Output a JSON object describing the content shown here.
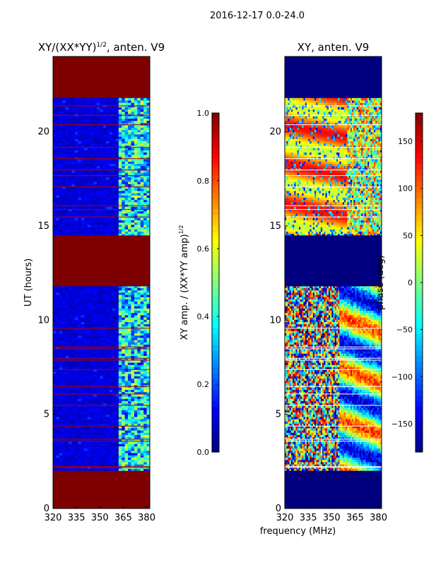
{
  "header": {
    "title": "2016-12-17 0.0-24.0"
  },
  "chart_data": [
    {
      "type": "heatmap",
      "title": "XY/(XX*YY)^1/2, anten. V9",
      "title_parts": {
        "base": "XY/(XX*YY)",
        "sup": "1/2",
        "tail": ", anten. V9"
      },
      "xlabel": "",
      "ylabel": "UT (hours)",
      "xlim": [
        320,
        382
      ],
      "ylim": [
        0,
        24
      ],
      "xticks": [
        320,
        335,
        350,
        365,
        380
      ],
      "yticks": [
        0,
        5,
        10,
        15,
        20
      ],
      "colormap": "jet",
      "colorbar": {
        "label": "XY amp. / (XX*YY amp)^1/2",
        "label_parts": {
          "base": "XY amp. / (XX*YY amp)",
          "sup": "1/2"
        },
        "range": [
          0.0,
          1.0
        ],
        "ticks": [
          0.0,
          0.2,
          0.4,
          0.6,
          0.8,
          1.0
        ],
        "tick_labels": [
          "0.0",
          "0.2",
          "0.4",
          "0.6",
          "0.8",
          "1.0"
        ]
      },
      "flagged_ut_ranges": [
        [
          0,
          2.0
        ],
        [
          11.8,
          14.5
        ],
        [
          21.8,
          24
        ]
      ],
      "data_start_ut": 2.0
    },
    {
      "type": "heatmap",
      "title": "XY, anten. V9",
      "xlabel": "frequency (MHz)",
      "ylabel": "",
      "xlim": [
        320,
        382
      ],
      "ylim": [
        0,
        24
      ],
      "xticks": [
        320,
        335,
        350,
        365,
        380
      ],
      "yticks": [
        0,
        5,
        10,
        15,
        20
      ],
      "colormap": "jet",
      "colorbar": {
        "label": "phase (deg)",
        "range": [
          -180,
          180
        ],
        "ticks": [
          -150,
          -100,
          -50,
          0,
          50,
          100,
          150
        ],
        "tick_labels": [
          "−150",
          "−100",
          "−50",
          "0",
          "50",
          "100",
          "150"
        ]
      },
      "flagged_ut_ranges": [
        [
          0,
          2.0
        ],
        [
          11.8,
          14.5
        ],
        [
          21.8,
          24
        ]
      ],
      "data_start_ut": 2.0
    }
  ]
}
